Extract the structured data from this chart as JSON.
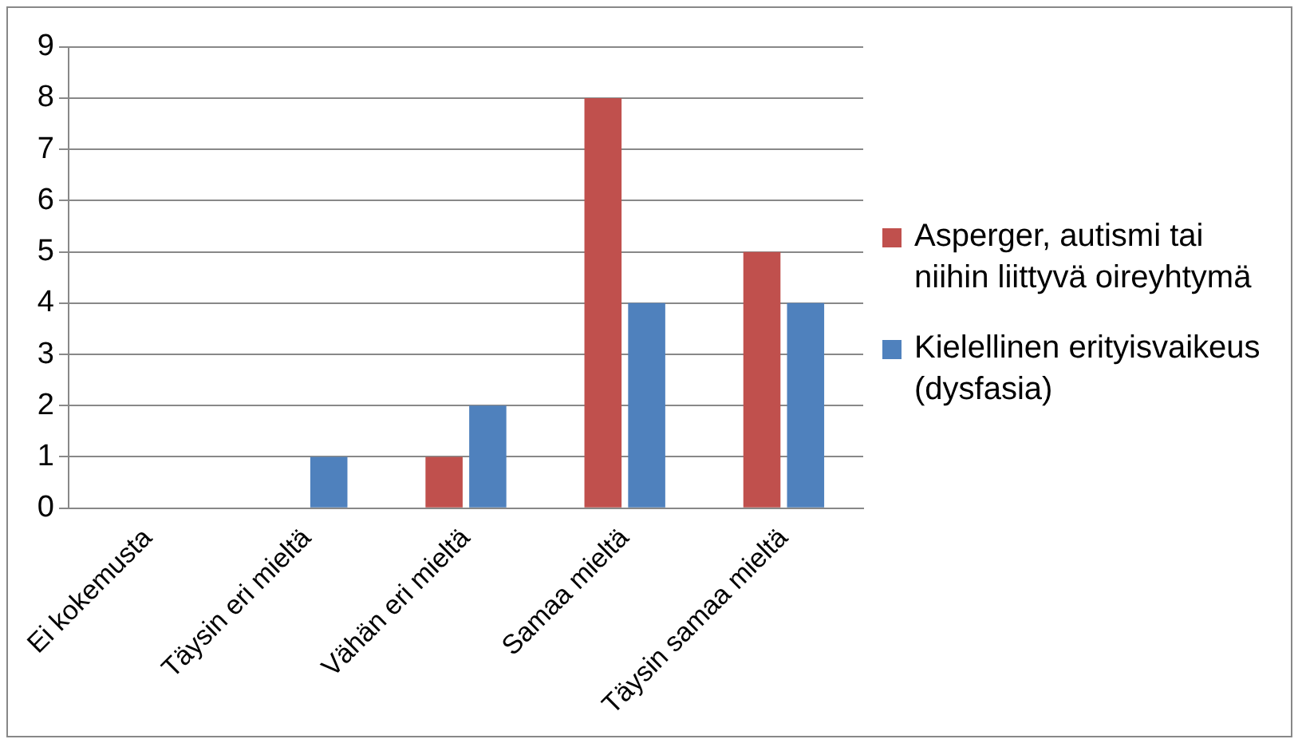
{
  "chart_data": {
    "type": "bar",
    "categories": [
      "Ei kokemusta",
      "Täysin eri mieltä",
      "Vähän eri mieltä",
      "Samaa mieltä",
      "Täysin samaa mieltä"
    ],
    "series": [
      {
        "name": "Asperger, autismi tai niihin liittyvä oireyhtymä",
        "color": "#c0504d",
        "values": [
          0,
          0,
          1,
          8,
          5
        ]
      },
      {
        "name": "Kielellinen erityisvaikeus (dysfasia)",
        "color": "#4f81bd",
        "values": [
          0,
          1,
          2,
          4,
          4
        ]
      }
    ],
    "ylim": [
      0,
      9
    ],
    "yticks": [
      0,
      1,
      2,
      3,
      4,
      5,
      6,
      7,
      8,
      9
    ],
    "grid": "y",
    "legend": "right"
  }
}
